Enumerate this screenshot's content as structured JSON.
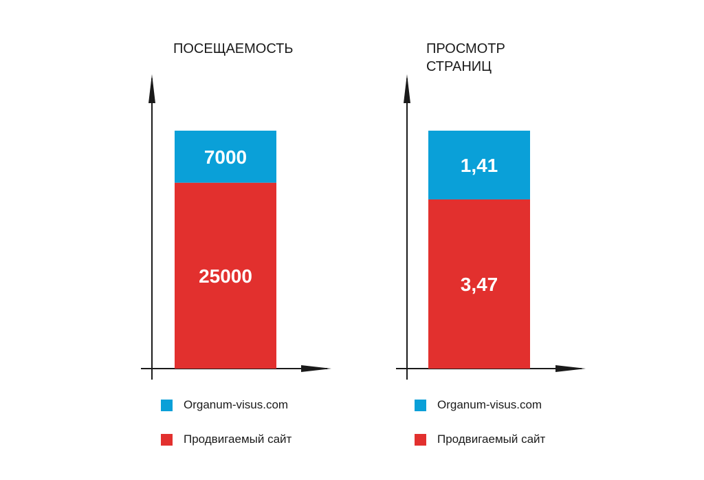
{
  "colors": {
    "competitor": "#0aa0d8",
    "promoted": "#e2302e",
    "axis": "#1a1a1a"
  },
  "chart_data": [
    {
      "type": "bar",
      "stacked": true,
      "title": "ПОСЕЩАЕМОСТЬ",
      "series": [
        {
          "name": "Продвигаемый сайт",
          "values": [
            25000
          ],
          "label": "25000"
        },
        {
          "name": "Organum-visus.com",
          "values": [
            7000
          ],
          "label": "7000"
        }
      ],
      "legend": [
        "Organum-visus.com",
        "Продвигаемый сайт"
      ],
      "legend_position": "bottom"
    },
    {
      "type": "bar",
      "stacked": true,
      "title": "ПРОСМОТР\nСТРАНИЦ",
      "series": [
        {
          "name": "Продвигаемый сайт",
          "values": [
            3.47
          ],
          "label": "3,47"
        },
        {
          "name": "Organum-visus.com",
          "values": [
            1.41
          ],
          "label": "1,41"
        }
      ],
      "legend": [
        "Organum-visus.com",
        "Продвигаемый сайт"
      ],
      "legend_position": "bottom"
    }
  ]
}
